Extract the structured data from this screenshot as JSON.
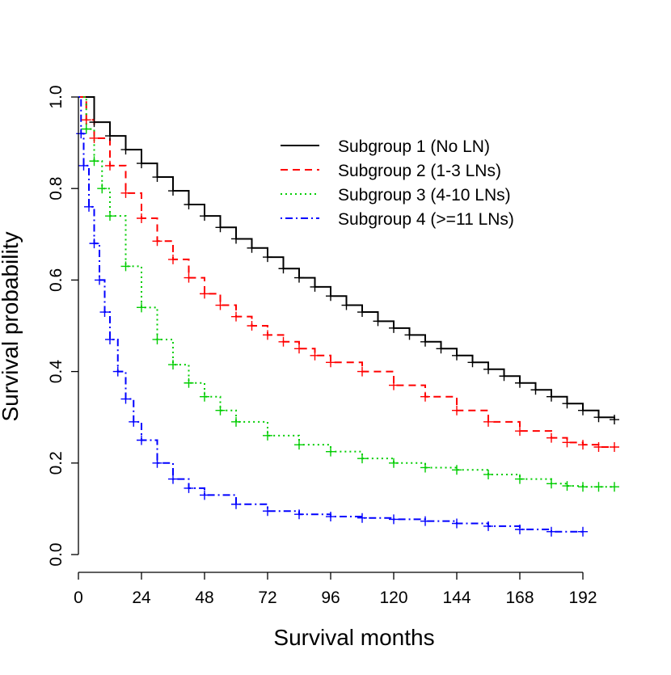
{
  "chart_data": {
    "type": "line",
    "title": "",
    "xlabel": "Survival months",
    "ylabel": "Survival probability",
    "xlim": [
      0,
      204
    ],
    "ylim": [
      0,
      1
    ],
    "x_ticks": [
      0,
      24,
      48,
      72,
      96,
      120,
      144,
      168,
      192
    ],
    "y_ticks": [
      0.0,
      0.2,
      0.4,
      0.6,
      0.8,
      1.0
    ],
    "x_tick_labels": [
      "0",
      "24",
      "48",
      "72",
      "96",
      "120",
      "144",
      "168",
      "192"
    ],
    "y_tick_labels": [
      "0.0",
      "0.2",
      "0.4",
      "0.6",
      "0.8",
      "1.0"
    ],
    "grid": false,
    "legend_position": "top-right",
    "censor_marker": "+",
    "series": [
      {
        "name": "Subgroup 1 (No LN)",
        "color": "#000000",
        "dash": "solid",
        "x": [
          0,
          6,
          12,
          18,
          24,
          30,
          36,
          42,
          48,
          54,
          60,
          66,
          72,
          78,
          84,
          90,
          96,
          102,
          108,
          114,
          120,
          126,
          132,
          138,
          144,
          150,
          156,
          162,
          168,
          174,
          180,
          186,
          192,
          198,
          204
        ],
        "y": [
          1.0,
          0.945,
          0.915,
          0.885,
          0.855,
          0.825,
          0.795,
          0.765,
          0.74,
          0.715,
          0.69,
          0.67,
          0.65,
          0.625,
          0.605,
          0.585,
          0.565,
          0.545,
          0.53,
          0.51,
          0.495,
          0.48,
          0.465,
          0.45,
          0.435,
          0.42,
          0.405,
          0.39,
          0.375,
          0.36,
          0.345,
          0.33,
          0.315,
          0.3,
          0.295
        ]
      },
      {
        "name": "Subgroup 2 (1-3 LNs)",
        "color": "#ff0000",
        "dash": "dashed",
        "x": [
          0,
          3,
          6,
          12,
          18,
          24,
          30,
          36,
          42,
          48,
          54,
          60,
          66,
          72,
          78,
          84,
          90,
          96,
          108,
          120,
          132,
          144,
          156,
          168,
          180,
          186,
          192,
          198,
          204
        ],
        "y": [
          1.0,
          0.95,
          0.91,
          0.85,
          0.79,
          0.735,
          0.685,
          0.645,
          0.605,
          0.57,
          0.545,
          0.52,
          0.5,
          0.48,
          0.465,
          0.45,
          0.435,
          0.42,
          0.4,
          0.37,
          0.345,
          0.315,
          0.29,
          0.27,
          0.255,
          0.245,
          0.24,
          0.235,
          0.235
        ]
      },
      {
        "name": "Subgroup 3 (4-10 LNs)",
        "color": "#00cd00",
        "dash": "dotted",
        "x": [
          0,
          3,
          6,
          9,
          12,
          18,
          24,
          30,
          36,
          42,
          48,
          54,
          60,
          72,
          84,
          96,
          108,
          120,
          132,
          144,
          156,
          168,
          180,
          186,
          192,
          198,
          204
        ],
        "y": [
          1.0,
          0.93,
          0.86,
          0.8,
          0.74,
          0.63,
          0.54,
          0.47,
          0.415,
          0.375,
          0.345,
          0.315,
          0.29,
          0.26,
          0.24,
          0.225,
          0.21,
          0.2,
          0.19,
          0.185,
          0.175,
          0.165,
          0.155,
          0.15,
          0.148,
          0.148,
          0.148
        ]
      },
      {
        "name": "Subgroup 4 (>=11 LNs)",
        "color": "#0000ff",
        "dash": "dotdash",
        "x": [
          0,
          1,
          2,
          4,
          6,
          8,
          10,
          12,
          15,
          18,
          21,
          24,
          30,
          36,
          42,
          48,
          60,
          72,
          84,
          96,
          108,
          120,
          132,
          144,
          156,
          168,
          180,
          192
        ],
        "y": [
          1.0,
          0.92,
          0.85,
          0.76,
          0.68,
          0.6,
          0.53,
          0.47,
          0.4,
          0.34,
          0.29,
          0.25,
          0.2,
          0.165,
          0.145,
          0.13,
          0.11,
          0.095,
          0.088,
          0.083,
          0.08,
          0.077,
          0.073,
          0.068,
          0.062,
          0.055,
          0.05,
          0.05
        ]
      }
    ]
  }
}
